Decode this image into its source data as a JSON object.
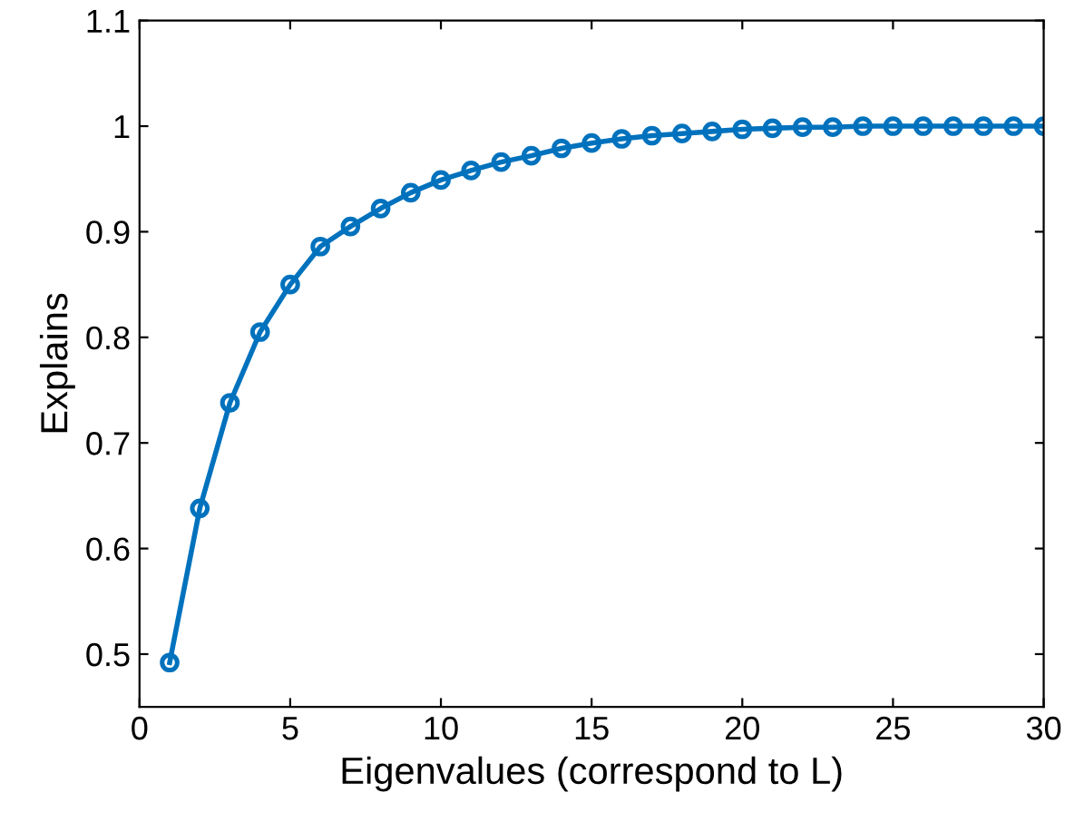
{
  "chart_data": {
    "type": "line",
    "xlabel": "Eigenvalues (correspond to L)",
    "ylabel": "Explains",
    "x": [
      1,
      2,
      3,
      4,
      5,
      6,
      7,
      8,
      9,
      10,
      11,
      12,
      13,
      14,
      15,
      16,
      17,
      18,
      19,
      20,
      21,
      22,
      23,
      24,
      25,
      26,
      27,
      28,
      29,
      30
    ],
    "series": [
      {
        "color": "#0072bd",
        "values": [
          0.492,
          0.638,
          0.738,
          0.805,
          0.85,
          0.886,
          0.905,
          0.922,
          0.937,
          0.949,
          0.958,
          0.966,
          0.972,
          0.979,
          0.984,
          0.988,
          0.991,
          0.993,
          0.995,
          0.997,
          0.998,
          0.999,
          0.999,
          1,
          1,
          1,
          1,
          1,
          1,
          1
        ]
      }
    ],
    "xlim": [
      0,
      30
    ],
    "xticks": [
      0,
      5,
      10,
      15,
      20,
      25,
      30
    ],
    "ylim": [
      0.45,
      1.1
    ],
    "yticks": [
      0.5,
      0.6,
      0.7,
      0.8,
      0.9,
      1,
      1.1
    ],
    "marker": "circle",
    "line_style": "solid",
    "grid": false,
    "legend": false
  }
}
